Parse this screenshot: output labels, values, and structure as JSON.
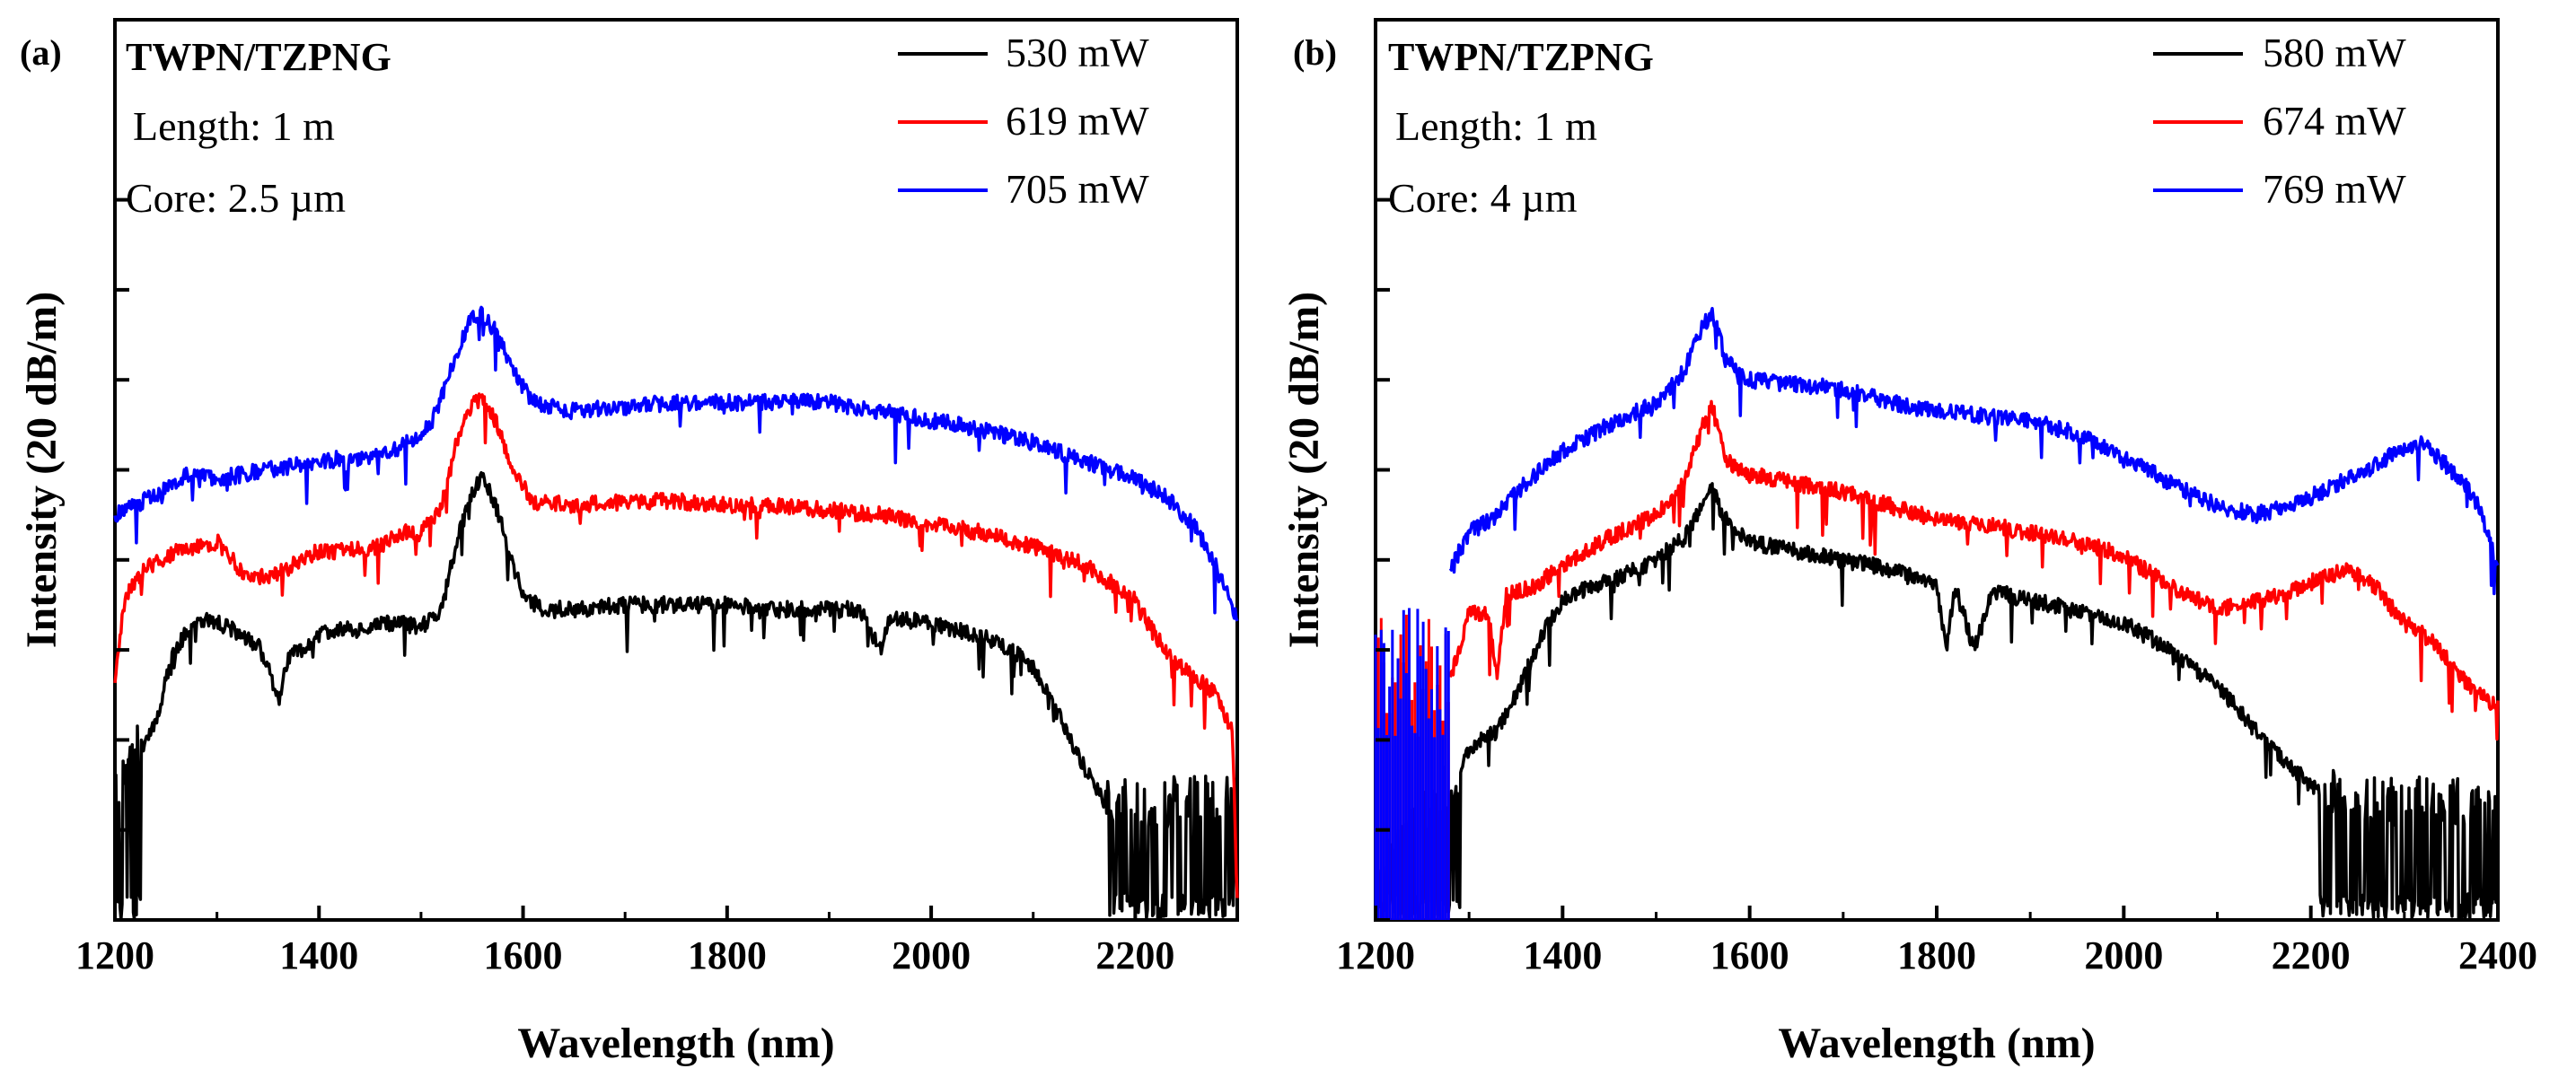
{
  "chart_data": [
    {
      "type": "line",
      "panel_label": "(a)",
      "annotation": {
        "title": "TWPN/TZPNG",
        "length": "Length: 1 m",
        "core": "Core: 2.5 µm"
      },
      "xlabel": "Wavelength (nm)",
      "ylabel": "Intensity (20 dB/m)",
      "xlim": [
        1200,
        2300
      ],
      "ylim": [
        0,
        10
      ],
      "x_ticks": [
        1200,
        1400,
        1600,
        1800,
        2000,
        2200
      ],
      "y_ticks": [
        0,
        1,
        2,
        3,
        4,
        5,
        6,
        7,
        8
      ],
      "legend_position": "top-right",
      "grid": false,
      "series": [
        {
          "name": "530 mW",
          "color": "#000000",
          "noise_floor": true,
          "noise_ranges": [
            [
              1200,
              1225
            ],
            [
              2170,
              2300
            ]
          ],
          "points": [
            [
              1200,
              1.5
            ],
            [
              1210,
              1.7
            ],
            [
              1225,
              1.9
            ],
            [
              1240,
              2.2
            ],
            [
              1255,
              2.9
            ],
            [
              1270,
              3.2
            ],
            [
              1285,
              3.35
            ],
            [
              1300,
              3.3
            ],
            [
              1320,
              3.2
            ],
            [
              1340,
              3.05
            ],
            [
              1350,
              2.85
            ],
            [
              1360,
              2.4
            ],
            [
              1370,
              2.95
            ],
            [
              1385,
              3.0
            ],
            [
              1400,
              3.15
            ],
            [
              1420,
              3.25
            ],
            [
              1440,
              3.2
            ],
            [
              1460,
              3.3
            ],
            [
              1480,
              3.3
            ],
            [
              1500,
              3.25
            ],
            [
              1520,
              3.45
            ],
            [
              1535,
              4.2
            ],
            [
              1550,
              4.75
            ],
            [
              1560,
              4.9
            ],
            [
              1570,
              4.7
            ],
            [
              1580,
              4.35
            ],
            [
              1590,
              3.95
            ],
            [
              1600,
              3.6
            ],
            [
              1620,
              3.45
            ],
            [
              1650,
              3.45
            ],
            [
              1700,
              3.5
            ],
            [
              1750,
              3.5
            ],
            [
              1800,
              3.5
            ],
            [
              1850,
              3.45
            ],
            [
              1900,
              3.45
            ],
            [
              1930,
              3.45
            ],
            [
              1950,
              3.0
            ],
            [
              1960,
              3.35
            ],
            [
              2000,
              3.3
            ],
            [
              2050,
              3.15
            ],
            [
              2080,
              3.0
            ],
            [
              2100,
              2.8
            ],
            [
              2120,
              2.4
            ],
            [
              2140,
              1.9
            ],
            [
              2160,
              1.5
            ],
            [
              2170,
              1.3
            ],
            [
              2200,
              1.3
            ],
            [
              2250,
              1.3
            ],
            [
              2300,
              1.3
            ]
          ]
        },
        {
          "name": "619 mW",
          "color": "#ff0000",
          "points": [
            [
              1200,
              2.65
            ],
            [
              1210,
              3.6
            ],
            [
              1230,
              3.9
            ],
            [
              1260,
              4.1
            ],
            [
              1280,
              4.15
            ],
            [
              1300,
              4.2
            ],
            [
              1330,
              3.8
            ],
            [
              1360,
              3.85
            ],
            [
              1400,
              4.1
            ],
            [
              1430,
              4.1
            ],
            [
              1460,
              4.15
            ],
            [
              1480,
              4.3
            ],
            [
              1500,
              4.3
            ],
            [
              1520,
              4.6
            ],
            [
              1535,
              5.3
            ],
            [
              1550,
              5.75
            ],
            [
              1560,
              5.8
            ],
            [
              1575,
              5.5
            ],
            [
              1590,
              5.0
            ],
            [
              1610,
              4.65
            ],
            [
              1650,
              4.6
            ],
            [
              1700,
              4.65
            ],
            [
              1750,
              4.65
            ],
            [
              1800,
              4.6
            ],
            [
              1850,
              4.6
            ],
            [
              1900,
              4.55
            ],
            [
              1950,
              4.5
            ],
            [
              2000,
              4.4
            ],
            [
              2050,
              4.3
            ],
            [
              2100,
              4.15
            ],
            [
              2150,
              3.95
            ],
            [
              2200,
              3.55
            ],
            [
              2220,
              3.15
            ],
            [
              2240,
              2.85
            ],
            [
              2260,
              2.7
            ],
            [
              2280,
              2.5
            ],
            [
              2295,
              2.1
            ],
            [
              2300,
              0.3
            ]
          ]
        },
        {
          "name": "705 mW",
          "color": "#0000ff",
          "points": [
            [
              1200,
              4.5
            ],
            [
              1220,
              4.6
            ],
            [
              1250,
              4.8
            ],
            [
              1270,
              4.95
            ],
            [
              1300,
              4.9
            ],
            [
              1350,
              5.0
            ],
            [
              1400,
              5.1
            ],
            [
              1450,
              5.15
            ],
            [
              1480,
              5.25
            ],
            [
              1510,
              5.5
            ],
            [
              1535,
              6.3
            ],
            [
              1550,
              6.7
            ],
            [
              1560,
              6.75
            ],
            [
              1575,
              6.5
            ],
            [
              1590,
              6.1
            ],
            [
              1610,
              5.75
            ],
            [
              1650,
              5.65
            ],
            [
              1700,
              5.7
            ],
            [
              1750,
              5.75
            ],
            [
              1800,
              5.75
            ],
            [
              1850,
              5.75
            ],
            [
              1900,
              5.75
            ],
            [
              1950,
              5.65
            ],
            [
              2000,
              5.55
            ],
            [
              2050,
              5.45
            ],
            [
              2100,
              5.3
            ],
            [
              2150,
              5.1
            ],
            [
              2200,
              4.9
            ],
            [
              2230,
              4.7
            ],
            [
              2260,
              4.35
            ],
            [
              2280,
              3.9
            ],
            [
              2300,
              3.35
            ]
          ]
        }
      ]
    },
    {
      "type": "line",
      "panel_label": "(b)",
      "annotation": {
        "title": "TWPN/TZPNG",
        "length": "Length: 1 m",
        "core": "Core: 4 µm"
      },
      "xlabel": "Wavelength (nm)",
      "ylabel": "Intensity (20 dB/m)",
      "xlim": [
        1200,
        2400
      ],
      "ylim": [
        0,
        10
      ],
      "x_ticks": [
        1200,
        1400,
        1600,
        1800,
        2000,
        2200,
        2400
      ],
      "y_ticks": [
        0,
        1,
        2,
        3,
        4,
        5,
        6,
        7,
        8
      ],
      "legend_position": "top-right",
      "grid": false,
      "series": [
        {
          "name": "580 mW",
          "color": "#000000",
          "noise_floor": true,
          "noise_ranges": [
            [
              1200,
              1290
            ],
            [
              2210,
              2400
            ]
          ],
          "points": [
            [
              1200,
              0.4
            ],
            [
              1280,
              1.5
            ],
            [
              1300,
              1.9
            ],
            [
              1330,
              2.1
            ],
            [
              1350,
              2.5
            ],
            [
              1380,
              3.2
            ],
            [
              1400,
              3.55
            ],
            [
              1430,
              3.7
            ],
            [
              1460,
              3.8
            ],
            [
              1500,
              4.0
            ],
            [
              1530,
              4.25
            ],
            [
              1550,
              4.6
            ],
            [
              1560,
              4.8
            ],
            [
              1570,
              4.5
            ],
            [
              1600,
              4.2
            ],
            [
              1650,
              4.1
            ],
            [
              1700,
              4.0
            ],
            [
              1750,
              3.9
            ],
            [
              1800,
              3.7
            ],
            [
              1810,
              3.0
            ],
            [
              1820,
              3.7
            ],
            [
              1840,
              3.0
            ],
            [
              1860,
              3.65
            ],
            [
              1900,
              3.55
            ],
            [
              1950,
              3.45
            ],
            [
              2000,
              3.3
            ],
            [
              2050,
              3.0
            ],
            [
              2100,
              2.6
            ],
            [
              2150,
              2.0
            ],
            [
              2200,
              1.5
            ],
            [
              2210,
              1.4
            ],
            [
              2250,
              1.3
            ],
            [
              2300,
              1.3
            ],
            [
              2400,
              1.25
            ]
          ]
        },
        {
          "name": "674 mW",
          "color": "#ff0000",
          "noise_ranges": [
            [
              1200,
              1280
            ]
          ],
          "points": [
            [
              1280,
              2.7
            ],
            [
              1300,
              3.4
            ],
            [
              1320,
              3.4
            ],
            [
              1330,
              2.75
            ],
            [
              1340,
              3.6
            ],
            [
              1370,
              3.7
            ],
            [
              1400,
              3.95
            ],
            [
              1450,
              4.25
            ],
            [
              1500,
              4.5
            ],
            [
              1530,
              4.85
            ],
            [
              1550,
              5.5
            ],
            [
              1560,
              5.7
            ],
            [
              1575,
              5.1
            ],
            [
              1600,
              4.95
            ],
            [
              1650,
              4.85
            ],
            [
              1700,
              4.75
            ],
            [
              1750,
              4.6
            ],
            [
              1800,
              4.45
            ],
            [
              1850,
              4.4
            ],
            [
              1900,
              4.3
            ],
            [
              1950,
              4.2
            ],
            [
              2000,
              4.05
            ],
            [
              2050,
              3.7
            ],
            [
              2100,
              3.45
            ],
            [
              2150,
              3.55
            ],
            [
              2200,
              3.75
            ],
            [
              2240,
              3.9
            ],
            [
              2270,
              3.7
            ],
            [
              2300,
              3.3
            ],
            [
              2330,
              3.1
            ],
            [
              2360,
              2.7
            ],
            [
              2380,
              2.5
            ],
            [
              2400,
              2.35
            ]
          ]
        },
        {
          "name": "769 mW",
          "color": "#0000ff",
          "noise_ranges": [
            [
              1200,
              1280
            ]
          ],
          "points": [
            [
              1280,
              3.9
            ],
            [
              1300,
              4.3
            ],
            [
              1330,
              4.5
            ],
            [
              1360,
              4.85
            ],
            [
              1400,
              5.2
            ],
            [
              1450,
              5.5
            ],
            [
              1500,
              5.75
            ],
            [
              1530,
              6.1
            ],
            [
              1550,
              6.6
            ],
            [
              1560,
              6.75
            ],
            [
              1575,
              6.2
            ],
            [
              1600,
              6.0
            ],
            [
              1650,
              5.95
            ],
            [
              1700,
              5.9
            ],
            [
              1750,
              5.75
            ],
            [
              1800,
              5.65
            ],
            [
              1850,
              5.6
            ],
            [
              1900,
              5.55
            ],
            [
              1950,
              5.4
            ],
            [
              2000,
              5.15
            ],
            [
              2050,
              4.85
            ],
            [
              2100,
              4.6
            ],
            [
              2140,
              4.5
            ],
            [
              2180,
              4.6
            ],
            [
              2220,
              4.8
            ],
            [
              2260,
              5.0
            ],
            [
              2300,
              5.25
            ],
            [
              2320,
              5.3
            ],
            [
              2340,
              5.1
            ],
            [
              2360,
              4.9
            ],
            [
              2380,
              4.6
            ],
            [
              2400,
              3.95
            ]
          ]
        }
      ]
    }
  ]
}
